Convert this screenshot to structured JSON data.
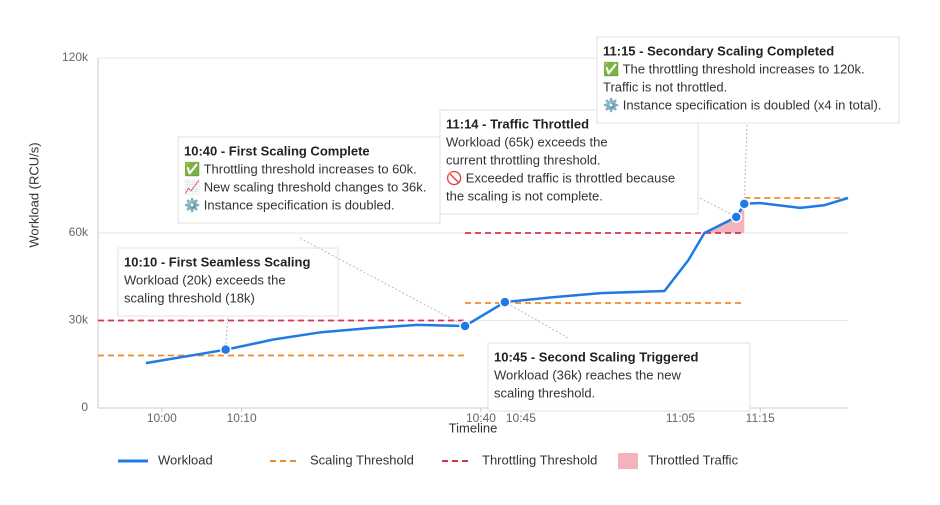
{
  "chart_data": {
    "type": "line",
    "x_label": "Timeline",
    "y_label": "Workload (RCU/s)",
    "xlim": [
      "09:52",
      "11:26"
    ],
    "xticks": [
      "10:00",
      "10:10",
      "10:40",
      "10:45",
      "11:05",
      "11:15"
    ],
    "ylim": [
      0,
      120000
    ],
    "yticks": [
      {
        "value": 0,
        "label": "0"
      },
      {
        "value": 30000,
        "label": "30k"
      },
      {
        "value": 60000,
        "label": "60k"
      },
      {
        "value": 120000,
        "label": "120k"
      }
    ],
    "grid": true,
    "legend": "bottom",
    "series": [
      {
        "name": "Workload",
        "type": "line",
        "color": "#1f7ae8",
        "x": [
          "09:58",
          "10:08",
          "10:14",
          "10:20",
          "10:26",
          "10:32",
          "10:38",
          "10:43",
          "10:49",
          "10:55",
          "11:03",
          "11:06",
          "11:08",
          "11:12",
          "11:13",
          "11:15",
          "11:20",
          "11:23",
          "11:26"
        ],
        "values": [
          15400,
          20000,
          23500,
          26000,
          27400,
          28500,
          28100,
          36300,
          38000,
          39400,
          40100,
          50700,
          60000,
          65500,
          70000,
          70300,
          68600,
          69500,
          72000
        ]
      },
      {
        "name": "Scaling Threshold",
        "type": "dashed",
        "color": "#f28a2a",
        "x": [
          "09:52",
          "10:38",
          null,
          "10:38",
          "11:13",
          null,
          "11:13",
          "11:26"
        ],
        "values": [
          18000,
          18000,
          null,
          36000,
          36000,
          null,
          72000,
          72000
        ]
      },
      {
        "name": "Throttling Threshold",
        "type": "dashed",
        "color": "#d8354a",
        "x": [
          "09:52",
          "10:38",
          null,
          "10:38",
          "11:13"
        ],
        "values": [
          30000,
          30000,
          null,
          60000,
          60000
        ]
      },
      {
        "name": "Throttled Traffic",
        "type": "area",
        "color": "#f2b3ba",
        "base": 60000,
        "x": [
          "11:08",
          "11:12",
          "11:13"
        ],
        "values": [
          60000,
          65500,
          70000
        ]
      }
    ],
    "annotations": [
      {
        "title": "10:10 - First Seamless Scaling",
        "lines": [
          "Workload (20k) exceeds the",
          "scaling threshold (18k)"
        ],
        "x": "10:08",
        "y": 20000
      },
      {
        "title": "10:40 - First Scaling Complete",
        "lines": [
          "✅ Throttling threshold increases to 60k.",
          "📈 New scaling threshold changes to 36k.",
          "⚙️ Instance specification is doubled."
        ],
        "x": "10:38",
        "y": 28100
      },
      {
        "title": "11:14 - Traffic Throttled",
        "lines": [
          "Workload (65k) exceeds the",
          "current throttling threshold.",
          "🚫 Exceeded traffic is throttled because",
          "the scaling is not complete."
        ],
        "x": "11:12",
        "y": 65500
      },
      {
        "title": "11:15 - Secondary Scaling Completed",
        "lines": [
          "✅ The throttling threshold increases to 120k.",
          "Traffic is not throttled.",
          "⚙️ Instance specification is doubled (x4 in total)."
        ],
        "x": "11:13",
        "y": 70000
      },
      {
        "title": "10:45 - Second Scaling Triggered",
        "lines": [
          "Workload (36k) reaches the new",
          "scaling threshold."
        ],
        "x": "10:43",
        "y": 36300
      }
    ]
  }
}
